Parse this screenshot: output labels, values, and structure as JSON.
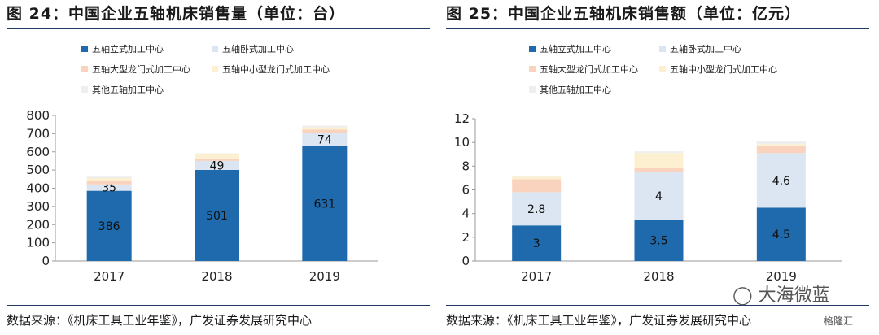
{
  "colors": {
    "vertical": "#1f6aad",
    "horizontal": "#dce6f2",
    "large_gantry": "#f9d3bd",
    "small_gantry": "#fdf0d0",
    "other": "#eeeeee",
    "rule": "#1f3864"
  },
  "left": {
    "title": "图 24：中国企业五轴机床销售量（单位：台）",
    "source": "数据来源：《机床工具工业年鉴》，广发证券发展研究中心"
  },
  "right": {
    "title": "图 25：中国企业五轴机床销售额（单位：亿元）",
    "source": "数据来源：《机床工具工业年鉴》，广发证券发展研究中心"
  },
  "legend": [
    {
      "name": "五轴立式加工中心",
      "color_key": "vertical"
    },
    {
      "name": "五轴卧式加工中心",
      "color_key": "horizontal"
    },
    {
      "name": "五轴大型龙门式加工中心",
      "color_key": "large_gantry"
    },
    {
      "name": "五轴中小型龙门式加工中心",
      "color_key": "small_gantry"
    },
    {
      "name": "其他五轴加工中心",
      "color_key": "other"
    }
  ],
  "watermark": {
    "main": "大海微蓝",
    "corner": "格隆汇"
  },
  "chart_data": [
    {
      "type": "bar",
      "stacked": true,
      "categories": [
        "2017",
        "2018",
        "2019"
      ],
      "ylim": [
        0,
        800
      ],
      "yticks": [
        "0",
        "100",
        "200",
        "300",
        "400",
        "500",
        "600",
        "700",
        "800"
      ],
      "series": [
        {
          "name": "五轴立式加工中心",
          "values": [
            386,
            501,
            631
          ],
          "labels": [
            "386",
            "501",
            "631"
          ]
        },
        {
          "name": "五轴卧式加工中心",
          "values": [
            35,
            49,
            74
          ],
          "labels": [
            "35",
            "49",
            "74"
          ]
        },
        {
          "name": "五轴大型龙门式加工中心",
          "values": [
            20,
            14,
            18
          ],
          "labels": [
            "",
            "",
            ""
          ]
        },
        {
          "name": "五轴中小型龙门式加工中心",
          "values": [
            15,
            22,
            12
          ],
          "labels": [
            "",
            "",
            ""
          ]
        },
        {
          "name": "其他五轴加工中心",
          "values": [
            8,
            6,
            9
          ],
          "labels": [
            "",
            "",
            ""
          ]
        }
      ]
    },
    {
      "type": "bar",
      "stacked": true,
      "categories": [
        "2017",
        "2018",
        "2019"
      ],
      "ylim": [
        0,
        12
      ],
      "yticks": [
        "0",
        "2",
        "4",
        "6",
        "8",
        "10",
        "12"
      ],
      "series": [
        {
          "name": "五轴立式加工中心",
          "values": [
            3,
            3.5,
            4.5
          ],
          "labels": [
            "3",
            "3.5",
            "4.5"
          ]
        },
        {
          "name": "五轴卧式加工中心",
          "values": [
            2.8,
            4,
            4.6
          ],
          "labels": [
            "2.8",
            "4",
            "4.6"
          ]
        },
        {
          "name": "五轴大型龙门式加工中心",
          "values": [
            1.1,
            0.4,
            0.6
          ],
          "labels": [
            "",
            "",
            ""
          ]
        },
        {
          "name": "五轴中小型龙门式加工中心",
          "values": [
            0.2,
            1.2,
            0.15
          ],
          "labels": [
            "",
            "",
            ""
          ]
        },
        {
          "name": "其他五轴加工中心",
          "values": [
            0.05,
            0.15,
            0.3
          ],
          "labels": [
            "",
            "",
            ""
          ]
        }
      ]
    }
  ]
}
